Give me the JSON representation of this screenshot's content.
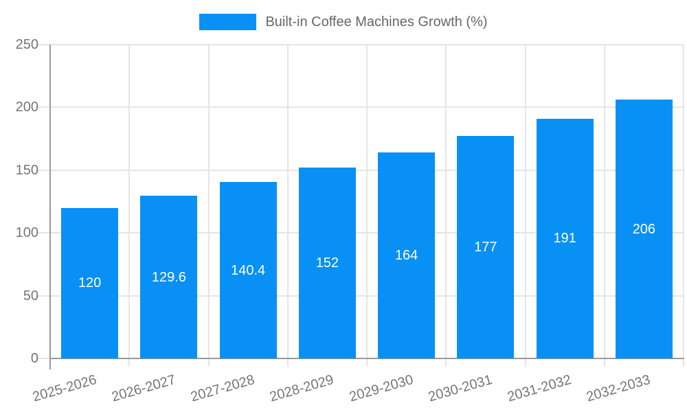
{
  "legend": {
    "label": "Built-in Coffee Machines Growth (%)"
  },
  "chart_data": {
    "type": "bar",
    "title": "",
    "categories": [
      "2025-2026",
      "2026-2027",
      "2027-2028",
      "2028-2029",
      "2029-2030",
      "2030-2031",
      "2031-2032",
      "2032-2033"
    ],
    "series": [
      {
        "name": "Built-in Coffee Machines Growth (%)",
        "values": [
          120,
          129.6,
          140.4,
          152,
          164,
          177,
          191,
          206
        ]
      }
    ],
    "value_labels": [
      "120",
      "129.6",
      "140.4",
      "152",
      "164",
      "177",
      "191",
      "206"
    ],
    "xlabel": "",
    "ylabel": "",
    "ylim": [
      0,
      250
    ],
    "yticks": [
      0,
      50,
      100,
      150,
      200,
      250
    ],
    "grid": true,
    "legend_position": "top-center",
    "x_label_rotation_deg": -16,
    "colors": {
      "bar": "#0890f5",
      "value_label": "#ffffff",
      "gridline": "#e5e5e5",
      "axis": "#999999",
      "tick_text": "#757575",
      "legend_text": "#666666",
      "background": "#ffffff"
    }
  }
}
